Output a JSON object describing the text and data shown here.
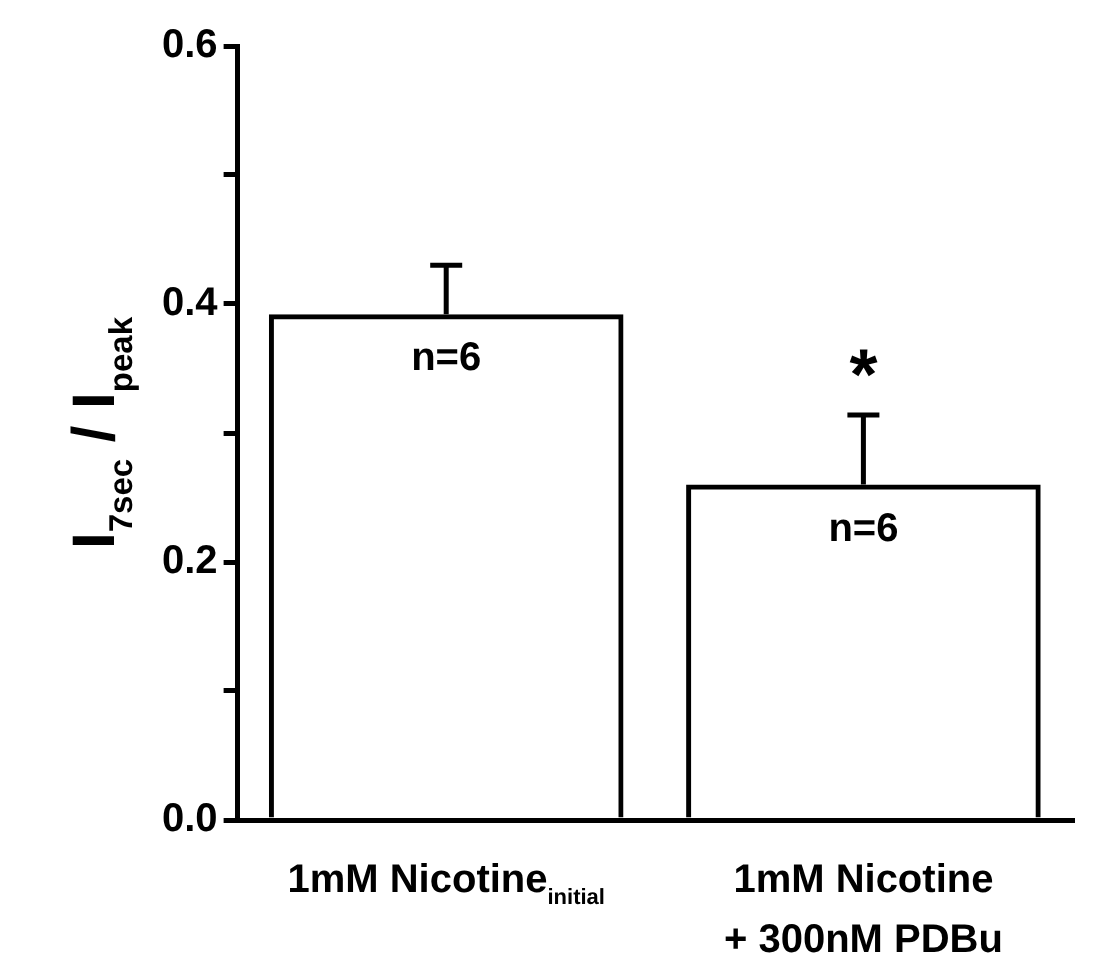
{
  "chart_data": {
    "type": "bar",
    "ylabel": "I$_{7sec}$ / I$_{peak}$",
    "categories": [
      "1mM Nicotine$_{initial}$",
      "1mM Nicotine\n+ 300nM PDBu"
    ],
    "values": [
      0.392,
      0.26
    ],
    "errors": [
      [
        0.392,
        0.43
      ],
      [
        0.26,
        0.314
      ]
    ],
    "color": "#000000",
    "ylim": [
      0,
      0.6
    ],
    "yticks": [
      {
        "value": 0,
        "label": "0.0"
      },
      {
        "value": 0.1,
        "label": null
      },
      0.2,
      {
        "value": 0.3,
        "label": null
      },
      0.4,
      {
        "value": 0.5,
        "label": null
      },
      0.6
    ],
    "grid": false,
    "legend": false,
    "annotations": [
      "n=6",
      "n=6",
      "*"
    ]
  }
}
